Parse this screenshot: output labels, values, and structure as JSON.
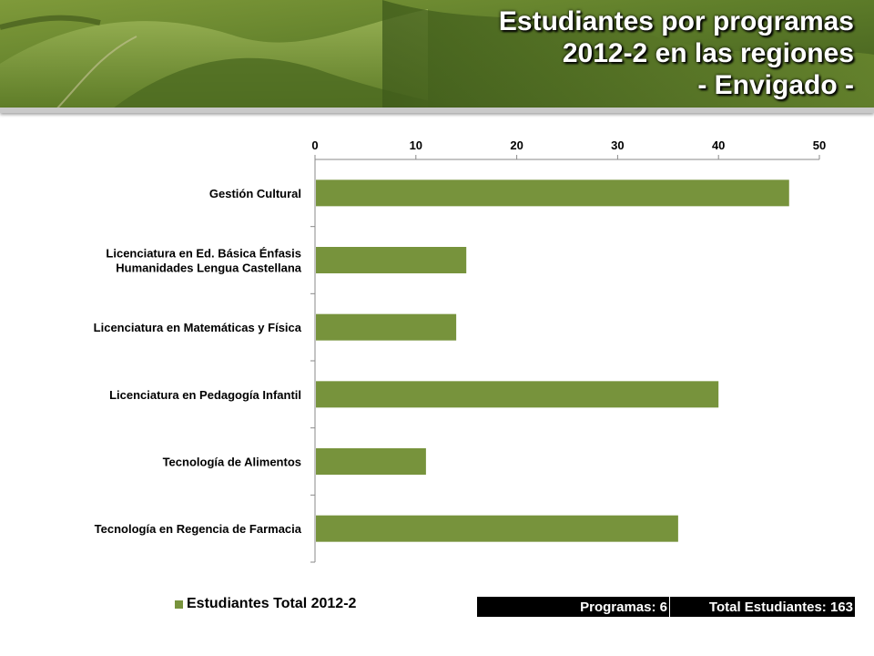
{
  "header": {
    "title_lines": [
      "Estudiantes  por programas",
      "2012-2 en las regiones",
      "- Envigado -"
    ]
  },
  "chart_data": {
    "type": "bar",
    "orientation": "horizontal",
    "categories": [
      "Gestión Cultural",
      "Licenciatura en Ed. Básica Énfasis Humanidades Lengua Castellana",
      "Licenciatura en Matemáticas y Física",
      "Licenciatura en Pedagogía Infantil",
      "Tecnología de Alimentos",
      "Tecnología en Regencia de Farmacia"
    ],
    "category_label_lines": [
      [
        "Gestión Cultural"
      ],
      [
        "Licenciatura en Ed. Básica Énfasis",
        "Humanidades Lengua Castellana"
      ],
      [
        "Licenciatura en Matemáticas y Física"
      ],
      [
        "Licenciatura en Pedagogía Infantil"
      ],
      [
        "Tecnología de Alimentos"
      ],
      [
        "Tecnología en Regencia de Farmacia"
      ]
    ],
    "series": [
      {
        "name": "Estudiantes Total 2012-2",
        "values": [
          47,
          15,
          14,
          40,
          11,
          36
        ]
      }
    ],
    "xlim": [
      0,
      50
    ],
    "x_ticks": [
      "0",
      "10",
      "20",
      "30",
      "40",
      "50"
    ],
    "x_axis_position": "top",
    "grid": false,
    "legend_position": "bottom-left",
    "bar_color": "#77933c"
  },
  "legend": {
    "label": "Estudiantes Total 2012-2"
  },
  "stats": {
    "programs": "Programas: 6",
    "total": "Total Estudiantes: 163"
  }
}
